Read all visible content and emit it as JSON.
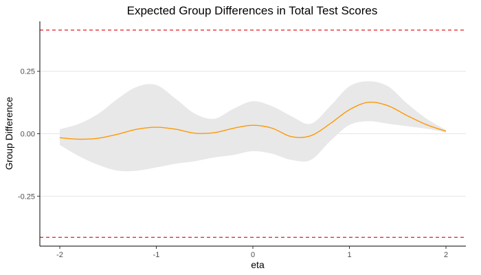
{
  "chart_data": {
    "type": "line",
    "title": "Expected Group Differences in Total Test Scores",
    "xlabel": "eta",
    "ylabel": "Group Difference",
    "xlim": [
      -2,
      2
    ],
    "ylim": [
      -0.45,
      0.45
    ],
    "x_ticks": [
      -2,
      -1,
      0,
      1,
      2
    ],
    "x_tick_labels": [
      "-2",
      "-1",
      "0",
      "1",
      "2"
    ],
    "y_ticks": [
      -0.25,
      0.0,
      0.25
    ],
    "y_tick_labels": [
      "-0.25",
      "0.00",
      "0.25"
    ],
    "grid": "horizontal",
    "reference_lines": [
      {
        "y": 0.415,
        "color": "#e41a1c",
        "style": "dashed"
      },
      {
        "y": -0.415,
        "color": "#e41a1c",
        "style": "dashed"
      }
    ],
    "series": [
      {
        "type": "line",
        "color": "#ff9800",
        "x": [
          -2.0,
          -1.8,
          -1.6,
          -1.4,
          -1.2,
          -1.0,
          -0.8,
          -0.6,
          -0.4,
          -0.2,
          0.0,
          0.2,
          0.4,
          0.6,
          0.8,
          1.0,
          1.2,
          1.4,
          1.6,
          1.8,
          2.0
        ],
        "y": [
          -0.016,
          -0.022,
          -0.018,
          -0.002,
          0.018,
          0.026,
          0.018,
          0.002,
          0.004,
          0.022,
          0.034,
          0.022,
          -0.012,
          -0.008,
          0.04,
          0.096,
          0.126,
          0.112,
          0.072,
          0.036,
          0.01
        ]
      },
      {
        "type": "ribbon",
        "color": "#e8e8e8",
        "x": [
          -2.0,
          -1.8,
          -1.6,
          -1.4,
          -1.2,
          -1.0,
          -0.8,
          -0.6,
          -0.4,
          -0.2,
          0.0,
          0.2,
          0.4,
          0.6,
          0.8,
          1.0,
          1.2,
          1.4,
          1.6,
          1.8,
          2.0
        ],
        "lower": [
          -0.045,
          -0.09,
          -0.125,
          -0.148,
          -0.148,
          -0.135,
          -0.12,
          -0.11,
          -0.095,
          -0.085,
          -0.07,
          -0.08,
          -0.105,
          -0.105,
          -0.03,
          0.035,
          0.05,
          0.04,
          0.03,
          0.02,
          0.005
        ],
        "upper": [
          0.018,
          0.04,
          0.08,
          0.14,
          0.188,
          0.195,
          0.14,
          0.08,
          0.06,
          0.1,
          0.13,
          0.11,
          0.07,
          0.04,
          0.11,
          0.19,
          0.21,
          0.19,
          0.12,
          0.06,
          0.015
        ]
      }
    ]
  }
}
